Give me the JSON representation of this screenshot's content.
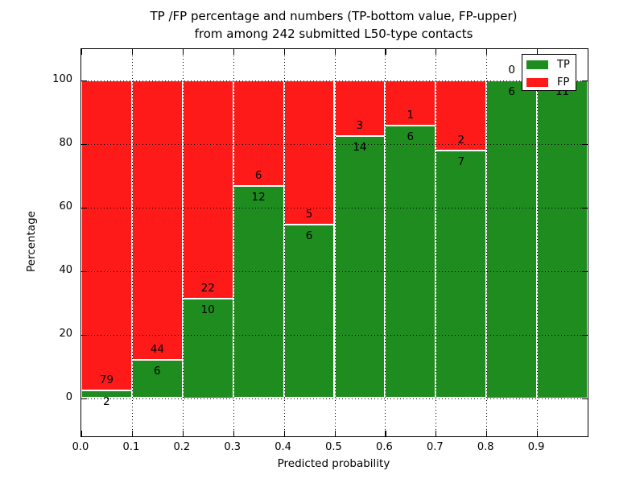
{
  "figure": {
    "title_line1": "TP /FP percentage and numbers (TP-bottom value, FP-upper)",
    "title_line2": "from among 242 submitted L50-type contacts",
    "xlabel": "Predicted probability",
    "ylabel": "Percentage",
    "background_color": "#ffffff"
  },
  "legend": {
    "position": "upper-right",
    "items": [
      {
        "label": "TP",
        "color": "#1e8c1e"
      },
      {
        "label": "FP",
        "color": "#ff1a1a"
      }
    ]
  },
  "chart_data": {
    "type": "bar",
    "variant": "stacked-100-percent-histogram",
    "title": "TP /FP percentage and numbers (TP-bottom value, FP-upper) from among 242 submitted L50-type contacts",
    "xlabel": "Predicted probability",
    "ylabel": "Percentage",
    "total_submitted_contacts": 242,
    "x_bin_starts": [
      0.0,
      0.1,
      0.2,
      0.3,
      0.4,
      0.5,
      0.6,
      0.7,
      0.8,
      0.9
    ],
    "x_bin_width": 0.1,
    "x_tick_labels": [
      "0.0",
      "0.1",
      "0.2",
      "0.3",
      "0.4",
      "0.5",
      "0.6",
      "0.7",
      "0.8",
      "0.9"
    ],
    "y_ticks": [
      0,
      20,
      40,
      60,
      80,
      100
    ],
    "y_tick_labels": [
      "0",
      "20",
      "40",
      "60",
      "80",
      "100"
    ],
    "xlim": [
      0.0,
      1.0
    ],
    "ylim": [
      -12,
      110
    ],
    "grid": "dotted-black-both-axes-above-bars",
    "bar_edge_color": "#ffffff",
    "annotation_rule": "FP count above TP/FP boundary, TP count below boundary; last bin FP label hidden behind legend",
    "series": [
      {
        "name": "TP",
        "color": "#1e8c1e",
        "counts": [
          2,
          6,
          10,
          12,
          6,
          14,
          6,
          7,
          6,
          11
        ]
      },
      {
        "name": "FP",
        "color": "#ff1a1a",
        "counts": [
          79,
          44,
          22,
          6,
          5,
          3,
          1,
          2,
          0,
          0
        ]
      }
    ],
    "tp_percentages": [
      2.5,
      12.0,
      31.3,
      66.7,
      54.5,
      82.4,
      85.7,
      77.8,
      100.0,
      100.0
    ]
  }
}
